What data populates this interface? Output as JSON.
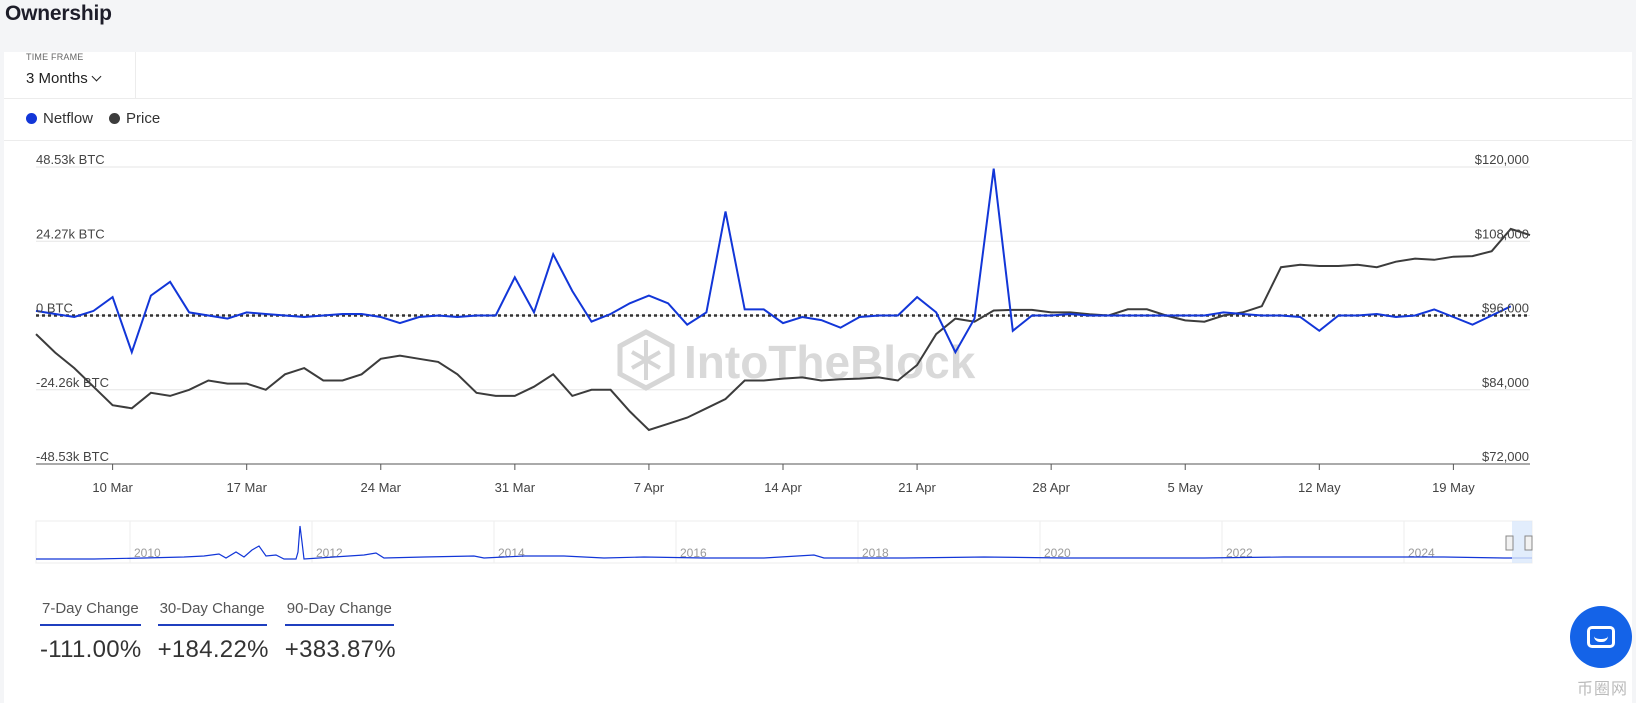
{
  "page": {
    "title": "Ownership"
  },
  "timeframe": {
    "label": "TIME FRAME",
    "value": "3 Months"
  },
  "legend": [
    {
      "name": "Netflow",
      "color": "#1236d8"
    },
    {
      "name": "Price",
      "color": "#3c3c3c"
    }
  ],
  "watermark": "IntoTheBlock",
  "corner_watermark": "币圈网",
  "chart_data": {
    "type": "line",
    "y_left_ticks": [
      "48.53k BTC",
      "24.27k BTC",
      "0 BTC",
      "-24.26k BTC",
      "-48.53k BTC"
    ],
    "y_left_range_k_btc": [
      -48.53,
      48.53
    ],
    "y_right_ticks": [
      "$120,000",
      "$108,000",
      "$96,000",
      "$84,000",
      "$72,000"
    ],
    "y_right_range_usd": [
      72000,
      120000
    ],
    "x_ticks": [
      "10 Mar",
      "17 Mar",
      "24 Mar",
      "31 Mar",
      "7 Apr",
      "14 Apr",
      "21 Apr",
      "28 Apr",
      "5 May",
      "12 May",
      "19 May"
    ],
    "x_tick_day_index": [
      4,
      11,
      18,
      25,
      32,
      39,
      46,
      53,
      60,
      67,
      74
    ],
    "x_day_range": [
      0,
      78
    ],
    "series": [
      {
        "name": "Netflow",
        "color": "#1236d8",
        "unit": "k BTC",
        "values": [
          1.5,
          0.5,
          -0.5,
          1.5,
          6,
          -12,
          6.5,
          11,
          1,
          0,
          -1,
          1,
          0.5,
          0,
          -0.5,
          0,
          0.5,
          0.5,
          -0.5,
          -2.5,
          -0.5,
          0,
          -0.5,
          0,
          0,
          12.5,
          1,
          20,
          8,
          -2,
          0.5,
          4,
          6.5,
          4,
          -3,
          1,
          34,
          2,
          2,
          -2.5,
          -0.5,
          -1.5,
          -4,
          -0.5,
          0,
          0,
          6,
          1,
          -12,
          -1,
          48,
          -5,
          0,
          0,
          0.5,
          0,
          0,
          0,
          0,
          0,
          0,
          0,
          1,
          0.5,
          0,
          0,
          -0.5,
          -5,
          0,
          0,
          0.5,
          -0.5,
          0,
          2,
          -0.5,
          -3,
          0,
          3
        ]
      },
      {
        "name": "Price",
        "color": "#3c3c3c",
        "unit": "USD",
        "values": [
          93000,
          90000,
          87500,
          84500,
          81500,
          81000,
          83500,
          83000,
          84000,
          85500,
          85000,
          85000,
          84000,
          86500,
          87500,
          85500,
          85500,
          86500,
          89000,
          89500,
          89000,
          88500,
          86500,
          83500,
          83000,
          83000,
          84500,
          86500,
          83000,
          84000,
          84000,
          80500,
          77500,
          78500,
          79500,
          81000,
          82500,
          85500,
          85500,
          85800,
          86000,
          85500,
          85700,
          85800,
          86000,
          85500,
          88000,
          93000,
          95500,
          95000,
          96800,
          96900,
          96900,
          96500,
          96500,
          96200,
          96000,
          97000,
          97000,
          96000,
          95200,
          95000,
          96000,
          96500,
          97500,
          103800,
          104200,
          104000,
          104000,
          104200,
          103800,
          104700,
          105200,
          105000,
          105500,
          105600,
          106400,
          110000,
          109000
        ]
      }
    ]
  }
}
